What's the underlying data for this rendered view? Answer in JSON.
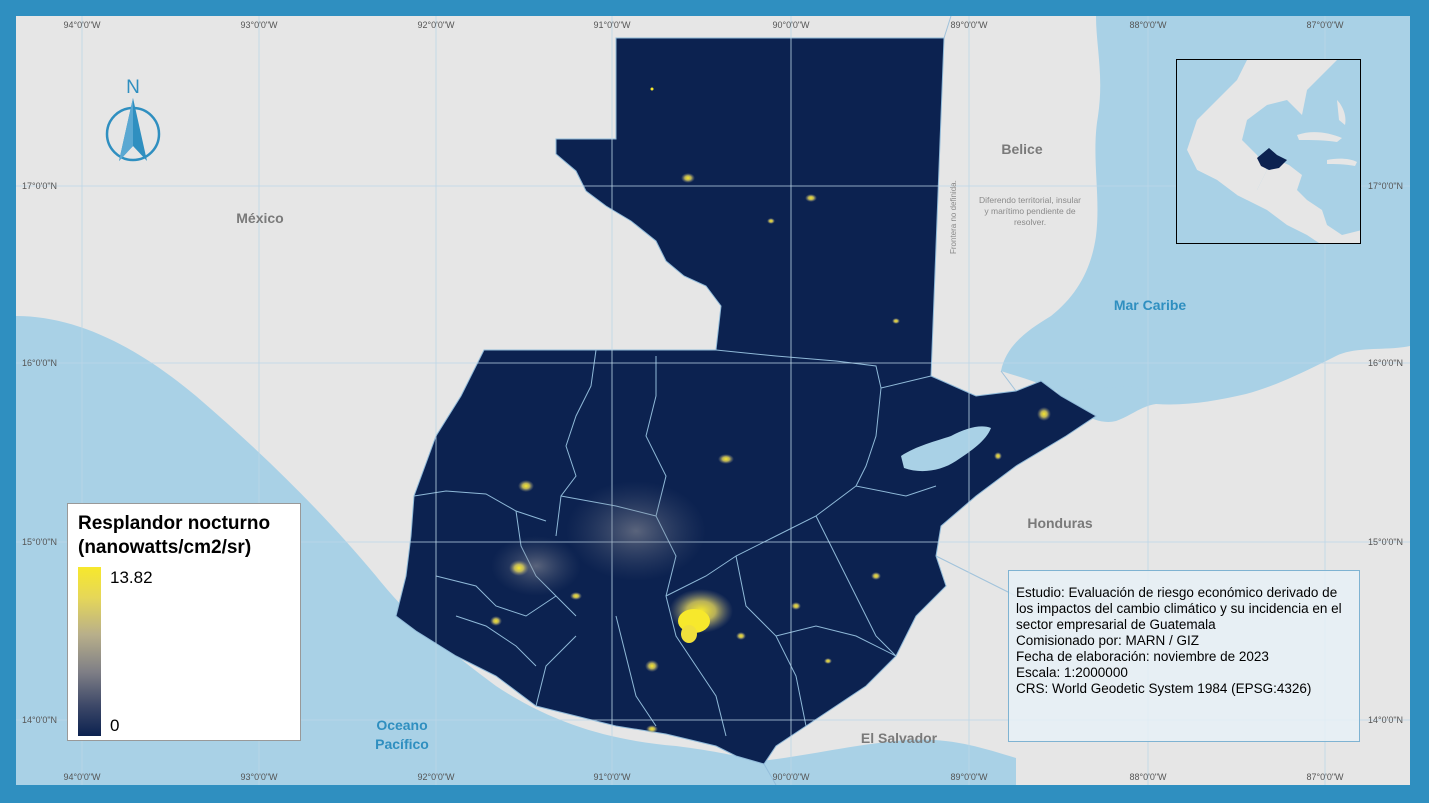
{
  "map": {
    "colors": {
      "frame": "#2f8fc0",
      "land": "#e6e6e6",
      "water": "#a9d1e6",
      "guatemala": "#0c2250",
      "borders": "#8fb9d8",
      "glow": "#f7e82c"
    },
    "ticks": {
      "top_lon": [
        "94°0'0\"W",
        "93°0'0\"W",
        "92°0'0\"W",
        "91°0'0\"W",
        "90°0'0\"W",
        "89°0'0\"W",
        "88°0'0\"W",
        "87°0'0\"W"
      ],
      "bottom_lon": [
        "94°0'0\"W",
        "93°0'0\"W",
        "92°0'0\"W",
        "91°0'0\"W",
        "90°0'0\"W",
        "89°0'0\"W",
        "88°0'0\"W",
        "87°0'0\"W"
      ],
      "left_lat": [
        "17°0'0\"N",
        "16°0'0\"N",
        "15°0'0\"N",
        "14°0'0\"N"
      ],
      "right_lat": [
        "17°0'0\"N",
        "16°0'0\"N",
        "15°0'0\"N",
        "14°0'0\"N"
      ]
    },
    "labels": {
      "mexico": "México",
      "belice": "Belice",
      "mar_caribe": "Mar Caribe",
      "honduras": "Honduras",
      "el_salvador": "El Salvador",
      "oceano_1": "Oceano",
      "oceano_2": "Pacífico",
      "frontera": "Frontera no definida.",
      "diferendo_1": "Diferendo territorial, insular",
      "diferendo_2": "y marítimo pendiente de",
      "diferendo_3": "resolver."
    },
    "north_letter": "N"
  },
  "legend": {
    "title_line1": "Resplandor nocturno",
    "title_line2": "(nanowatts/cm2/sr)",
    "max": "13.82",
    "min": "0"
  },
  "info": {
    "estudio": "Estudio: Evaluación de riesgo económico derivado de los impactos del cambio climático y su incidencia en el sector empresarial de Guatemala",
    "comisionado": "Comisionado por: MARN / GIZ",
    "fecha": "Fecha de elaboración: noviembre de 2023",
    "escala": "Escala: 1:2000000",
    "crs": "CRS: World Geodetic System 1984 (EPSG:4326)"
  }
}
